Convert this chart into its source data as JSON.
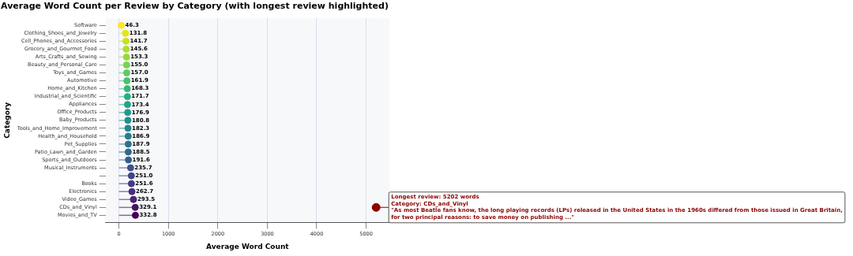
{
  "chart_data": {
    "type": "lollipop",
    "title": "Average Word Count per Review by Category (with longest review highlighted)",
    "xlabel": "Average Word Count",
    "ylabel": "Category",
    "orientation": "horizontal",
    "categories": [
      "Software",
      "Clothing_Shoes_and_Jewelry",
      "Cell_Phones_and_Accessories",
      "Grocery_and_Gourmet_Food",
      "Arts_Crafts_and_Sewing",
      "Beauty_and_Personal_Care",
      "Toys_and_Games",
      "Automotive",
      "Home_and_Kitchen",
      "Industrial_and_Scientific",
      "Appliances",
      "Office_Products",
      "Baby_Products",
      "Tools_and_Home_Improvement",
      "Health_and_Household",
      "Pet_Supplies",
      "Patio_Lawn_and_Garden",
      "Sports_and_Outdoors",
      "Musical_Instruments",
      null,
      "Books",
      "Electronics",
      "Video_Games",
      "CDs_and_Vinyl",
      "Movies_and_TV"
    ],
    "series": [
      {
        "values": [
          46.3,
          131.8,
          141.7,
          145.6,
          153.3,
          155.0,
          157.0,
          161.9,
          168.3,
          171.7,
          173.4,
          176.9,
          180.8,
          182.3,
          186.9,
          187.9,
          188.5,
          191.6,
          235.7,
          251.0,
          251.6,
          262.7,
          293.5,
          329.1,
          332.8
        ],
        "value_labels": [
          "46.3",
          "131.8",
          "141.7",
          "145.6",
          "153.3",
          "155.0",
          "157.0",
          "161.9",
          "168.3",
          "171.7",
          "173.4",
          "176.9",
          "180.8",
          "182.3",
          "186.9",
          "187.9",
          "188.5",
          "191.6",
          "235.7",
          "251.0",
          "251.6",
          "262.7",
          "293.5",
          "329.1",
          "332.8"
        ],
        "colors": [
          "#fde725",
          "#e5e419",
          "#cae11f",
          "#b0dd2f",
          "#95d840",
          "#7ad151",
          "#5ec962",
          "#48c16e",
          "#35b779",
          "#28ae80",
          "#20a486",
          "#1f9a8a",
          "#21918c",
          "#24878e",
          "#287d8e",
          "#2c728e",
          "#31688e",
          "#355e8d",
          "#3b528b",
          "#404688",
          "#443a83",
          "#472d7b",
          "#482173",
          "#471365",
          "#440154"
        ]
      },
      {
        "type": "scatter",
        "x": [
          "CDs_and_Vinyl"
        ],
        "values": [
          5202
        ],
        "color": "#8b0000"
      }
    ],
    "marker": "circle",
    "grid": "x",
    "legend": false,
    "xlim": [
      -270,
      5470
    ],
    "xticks": [
      0,
      1000,
      2000,
      3000,
      4000,
      5000
    ],
    "annotations": [
      {
        "text": "Longest review: 5202 words\nCategory: CDs_and_Vinyl\n\"As most Beatle fans know, the long playing records (LPs) released in the United States in the 1960s differed from those issued in Great Britain, for two principal reasons: to save money on publishing ...\"",
        "x": 5202,
        "y": "CDs_and_Vinyl"
      }
    ]
  }
}
